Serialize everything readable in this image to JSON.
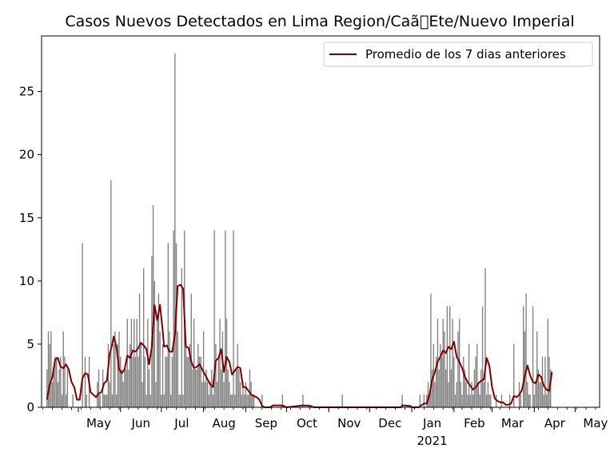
{
  "chart_data": {
    "type": "bar",
    "title": "Casos Nuevos Detectados en Lima Region/Caã\u0000Ete/Nuevo Imperial",
    "xlabel": "",
    "ylabel": "",
    "ylim": [
      0,
      29.4
    ],
    "x_start": "2020-04-04",
    "x_end": "2021-05-19",
    "y_ticks": [
      0,
      5,
      10,
      15,
      20,
      25
    ],
    "x_ticks": [
      {
        "date": "2020-05-01",
        "label": "May",
        "sub": ""
      },
      {
        "date": "2020-06-01",
        "label": "Jun",
        "sub": ""
      },
      {
        "date": "2020-07-01",
        "label": "Jul",
        "sub": ""
      },
      {
        "date": "2020-08-01",
        "label": "Aug",
        "sub": ""
      },
      {
        "date": "2020-09-01",
        "label": "Sep",
        "sub": ""
      },
      {
        "date": "2020-10-01",
        "label": "Oct",
        "sub": ""
      },
      {
        "date": "2020-11-01",
        "label": "Nov",
        "sub": ""
      },
      {
        "date": "2020-12-01",
        "label": "Dec",
        "sub": ""
      },
      {
        "date": "2021-01-01",
        "label": "Jan",
        "sub": "2021"
      },
      {
        "date": "2021-02-01",
        "label": "Feb",
        "sub": ""
      },
      {
        "date": "2021-03-01",
        "label": "Mar",
        "sub": ""
      },
      {
        "date": "2021-04-01",
        "label": "Apr",
        "sub": ""
      },
      {
        "date": "2021-05-01",
        "label": "May",
        "sub": ""
      }
    ],
    "legend": {
      "position": "top-right",
      "label": "Promedio de los 7 dias anteriores"
    },
    "colors": {
      "bars": "#808080",
      "line": "#800000"
    },
    "grid": false,
    "daily_cases": {
      "2020-04-08": 3,
      "2020-04-09": 6,
      "2020-04-10": 5,
      "2020-04-11": 6,
      "2020-04-12": 2,
      "2020-04-13": 3,
      "2020-04-14": 4,
      "2020-04-15": 4,
      "2020-04-16": 2,
      "2020-04-17": 3,
      "2020-04-18": 4,
      "2020-04-19": 1,
      "2020-04-20": 6,
      "2020-04-21": 4,
      "2020-04-22": 1,
      "2020-04-23": 3,
      "2020-04-27": 1,
      "2020-05-04": 13,
      "2020-05-06": 4,
      "2020-05-07": 1,
      "2020-05-09": 4,
      "2020-05-15": 2,
      "2020-05-16": 3,
      "2020-05-17": 1,
      "2020-05-19": 3,
      "2020-05-20": 1,
      "2020-05-21": 1,
      "2020-05-22": 1,
      "2020-05-23": 5,
      "2020-05-24": 2,
      "2020-05-25": 18,
      "2020-05-26": 1,
      "2020-05-27": 5,
      "2020-05-28": 6,
      "2020-05-29": 1,
      "2020-05-30": 5,
      "2020-05-31": 6,
      "2020-06-01": 4,
      "2020-06-02": 3,
      "2020-06-03": 2,
      "2020-06-04": 3,
      "2020-06-05": 3,
      "2020-06-06": 7,
      "2020-06-07": 3,
      "2020-06-08": 5,
      "2020-06-09": 7,
      "2020-06-10": 4,
      "2020-06-11": 7,
      "2020-06-12": 4,
      "2020-06-13": 7,
      "2020-06-14": 4,
      "2020-06-15": 9,
      "2020-06-16": 5,
      "2020-06-17": 2,
      "2020-06-18": 11,
      "2020-06-19": 4,
      "2020-06-20": 1,
      "2020-06-21": 7,
      "2020-06-22": 3,
      "2020-06-23": 1,
      "2020-06-24": 12,
      "2020-06-25": 16,
      "2020-06-26": 10,
      "2020-06-27": 2,
      "2020-06-28": 7,
      "2020-06-29": 9,
      "2020-06-30": 6,
      "2020-07-01": 1,
      "2020-07-02": 5,
      "2020-07-03": 1,
      "2020-07-04": 4,
      "2020-07-05": 4,
      "2020-07-06": 13,
      "2020-07-07": 6,
      "2020-07-08": 1,
      "2020-07-09": 4,
      "2020-07-10": 14,
      "2020-07-11": 28,
      "2020-07-12": 13,
      "2020-07-13": 6,
      "2020-07-14": 1,
      "2020-07-15": 1,
      "2020-07-16": 11,
      "2020-07-17": 1,
      "2020-07-18": 14,
      "2020-07-19": 5,
      "2020-07-20": 4,
      "2020-07-21": 4,
      "2020-07-22": 5,
      "2020-07-23": 9,
      "2020-07-24": 3,
      "2020-07-25": 7,
      "2020-07-26": 3,
      "2020-07-27": 3,
      "2020-07-28": 5,
      "2020-07-29": 4,
      "2020-07-30": 4,
      "2020-07-31": 2,
      "2020-08-01": 6,
      "2020-08-02": 2,
      "2020-08-03": 3,
      "2020-08-04": 2,
      "2020-08-05": 1,
      "2020-08-06": 2,
      "2020-08-07": 3,
      "2020-08-08": 1,
      "2020-08-09": 14,
      "2020-08-10": 5,
      "2020-08-11": 2,
      "2020-08-12": 4,
      "2020-08-13": 7,
      "2020-08-14": 3,
      "2020-08-15": 6,
      "2020-08-16": 2,
      "2020-08-17": 14,
      "2020-08-18": 7,
      "2020-08-19": 3,
      "2020-08-20": 2,
      "2020-08-21": 1,
      "2020-08-22": 1,
      "2020-08-23": 14,
      "2020-08-24": 1,
      "2020-08-25": 3,
      "2020-08-26": 5,
      "2020-08-27": 3,
      "2020-08-28": 2,
      "2020-08-29": 1,
      "2020-08-30": 2,
      "2020-08-31": 1,
      "2020-09-01": 2,
      "2020-09-02": 1,
      "2020-09-03": 1,
      "2020-09-04": 3,
      "2020-09-05": 2,
      "2020-09-06": 1,
      "2020-09-07": 1,
      "2020-09-13": 1,
      "2020-09-28": 1,
      "2020-10-13": 1,
      "2020-11-11": 1,
      "2020-12-25": 1,
      "2021-01-07": 1,
      "2021-01-10": 1,
      "2021-01-12": 1,
      "2021-01-13": 2,
      "2021-01-14": 1,
      "2021-01-15": 9,
      "2021-01-16": 3,
      "2021-01-17": 5,
      "2021-01-18": 2,
      "2021-01-19": 4,
      "2021-01-20": 7,
      "2021-01-21": 3,
      "2021-01-22": 5,
      "2021-01-23": 4,
      "2021-01-24": 7,
      "2021-01-25": 6,
      "2021-01-26": 3,
      "2021-01-27": 8,
      "2021-01-28": 2,
      "2021-01-29": 8,
      "2021-01-30": 3,
      "2021-01-31": 7,
      "2021-02-01": 4,
      "2021-02-02": 1,
      "2021-02-03": 2,
      "2021-02-04": 6,
      "2021-02-05": 7,
      "2021-02-06": 2,
      "2021-02-07": 1,
      "2021-02-08": 4,
      "2021-02-09": 3,
      "2021-02-10": 2,
      "2021-02-11": 1,
      "2021-02-12": 5,
      "2021-02-13": 1,
      "2021-02-14": 2,
      "2021-02-15": 1,
      "2021-02-16": 3,
      "2021-02-17": 4,
      "2021-02-18": 5,
      "2021-02-19": 2,
      "2021-02-20": 1,
      "2021-02-21": 3,
      "2021-02-22": 8,
      "2021-02-23": 2,
      "2021-02-24": 11,
      "2021-02-25": 1,
      "2021-02-26": 2,
      "2021-02-27": 1,
      "2021-02-28": 1,
      "2021-03-04": 1,
      "2021-03-08": 1,
      "2021-03-14": 1,
      "2021-03-17": 5,
      "2021-03-21": 2,
      "2021-03-22": 1,
      "2021-03-24": 8,
      "2021-03-25": 6,
      "2021-03-26": 9,
      "2021-03-27": 2,
      "2021-03-28": 1,
      "2021-03-29": 1,
      "2021-03-31": 8,
      "2021-04-01": 1,
      "2021-04-02": 2,
      "2021-04-03": 6,
      "2021-04-04": 3,
      "2021-04-05": 2,
      "2021-04-06": 2,
      "2021-04-07": 4,
      "2021-04-08": 1,
      "2021-04-09": 4,
      "2021-04-10": 1,
      "2021-04-11": 7,
      "2021-04-12": 4,
      "2021-04-13": 3
    },
    "rolling_avg_points": [
      [
        "2020-04-08",
        0.6
      ],
      [
        "2020-04-10",
        1.8
      ],
      [
        "2020-04-12",
        2.4
      ],
      [
        "2020-04-14",
        3.8
      ],
      [
        "2020-04-16",
        3.9
      ],
      [
        "2020-04-18",
        3.2
      ],
      [
        "2020-04-20",
        3.1
      ],
      [
        "2020-04-22",
        3.4
      ],
      [
        "2020-04-24",
        3.0
      ],
      [
        "2020-04-26",
        2.0
      ],
      [
        "2020-04-28",
        1.6
      ],
      [
        "2020-04-30",
        0.6
      ],
      [
        "2020-05-02",
        0.6
      ],
      [
        "2020-05-04",
        2.3
      ],
      [
        "2020-05-06",
        2.7
      ],
      [
        "2020-05-08",
        2.6
      ],
      [
        "2020-05-10",
        1.2
      ],
      [
        "2020-05-12",
        1.0
      ],
      [
        "2020-05-14",
        0.8
      ],
      [
        "2020-05-16",
        1.1
      ],
      [
        "2020-05-18",
        1.2
      ],
      [
        "2020-05-20",
        1.9
      ],
      [
        "2020-05-22",
        2.1
      ],
      [
        "2020-05-24",
        4.2
      ],
      [
        "2020-05-26",
        5.0
      ],
      [
        "2020-05-27",
        5.6
      ],
      [
        "2020-05-29",
        4.8
      ],
      [
        "2020-05-31",
        3.0
      ],
      [
        "2020-06-02",
        2.7
      ],
      [
        "2020-06-04",
        3.0
      ],
      [
        "2020-06-06",
        4.1
      ],
      [
        "2020-06-08",
        3.9
      ],
      [
        "2020-06-10",
        4.5
      ],
      [
        "2020-06-12",
        4.4
      ],
      [
        "2020-06-14",
        4.7
      ],
      [
        "2020-06-16",
        5.1
      ],
      [
        "2020-06-18",
        4.9
      ],
      [
        "2020-06-20",
        4.6
      ],
      [
        "2020-06-22",
        3.4
      ],
      [
        "2020-06-24",
        4.8
      ],
      [
        "2020-06-26",
        8.1
      ],
      [
        "2020-06-28",
        6.9
      ],
      [
        "2020-06-30",
        8.1
      ],
      [
        "2020-07-02",
        6.1
      ],
      [
        "2020-07-03",
        4.8
      ],
      [
        "2020-07-05",
        4.9
      ],
      [
        "2020-07-07",
        4.4
      ],
      [
        "2020-07-09",
        4.4
      ],
      [
        "2020-07-11",
        5.7
      ],
      [
        "2020-07-13",
        9.6
      ],
      [
        "2020-07-15",
        9.7
      ],
      [
        "2020-07-17",
        9.4
      ],
      [
        "2020-07-19",
        4.8
      ],
      [
        "2020-07-21",
        4.7
      ],
      [
        "2020-07-23",
        3.6
      ],
      [
        "2020-07-25",
        3.1
      ],
      [
        "2020-07-27",
        3.2
      ],
      [
        "2020-07-29",
        3.4
      ],
      [
        "2020-07-31",
        3.0
      ],
      [
        "2020-08-02",
        2.6
      ],
      [
        "2020-08-04",
        2.2
      ],
      [
        "2020-08-06",
        1.8
      ],
      [
        "2020-08-08",
        1.6
      ],
      [
        "2020-08-10",
        3.7
      ],
      [
        "2020-08-12",
        3.9
      ],
      [
        "2020-08-14",
        4.6
      ],
      [
        "2020-08-16",
        2.8
      ],
      [
        "2020-08-18",
        4.0
      ],
      [
        "2020-08-20",
        3.6
      ],
      [
        "2020-08-22",
        2.6
      ],
      [
        "2020-08-24",
        2.9
      ],
      [
        "2020-08-26",
        3.2
      ],
      [
        "2020-08-28",
        3.1
      ],
      [
        "2020-08-30",
        1.6
      ],
      [
        "2020-09-01",
        1.6
      ],
      [
        "2020-09-03",
        1.3
      ],
      [
        "2020-09-05",
        1.0
      ],
      [
        "2020-09-07",
        0.9
      ],
      [
        "2020-09-09",
        0.8
      ],
      [
        "2020-09-11",
        0.6
      ],
      [
        "2020-09-13",
        0.1
      ],
      [
        "2020-09-15",
        0.0
      ],
      [
        "2020-09-19",
        0.0
      ],
      [
        "2020-09-21",
        0.15
      ],
      [
        "2020-09-27",
        0.15
      ],
      [
        "2020-09-29",
        0.1
      ],
      [
        "2020-10-01",
        0.0
      ],
      [
        "2020-10-13",
        0.15
      ],
      [
        "2020-10-19",
        0.1
      ],
      [
        "2020-10-21",
        0.0
      ],
      [
        "2020-12-24",
        0.0
      ],
      [
        "2020-12-25",
        0.15
      ],
      [
        "2020-12-31",
        0.1
      ],
      [
        "2021-01-01",
        0.0
      ],
      [
        "2021-01-06",
        0.0
      ],
      [
        "2021-01-08",
        0.15
      ],
      [
        "2021-01-10",
        0.3
      ],
      [
        "2021-01-12",
        0.3
      ],
      [
        "2021-01-14",
        1.0
      ],
      [
        "2021-01-16",
        2.2
      ],
      [
        "2021-01-18",
        2.8
      ],
      [
        "2021-01-20",
        3.6
      ],
      [
        "2021-01-22",
        4.0
      ],
      [
        "2021-01-24",
        4.5
      ],
      [
        "2021-01-26",
        4.3
      ],
      [
        "2021-01-28",
        4.8
      ],
      [
        "2021-01-30",
        4.6
      ],
      [
        "2021-02-01",
        5.2
      ],
      [
        "2021-02-03",
        4.0
      ],
      [
        "2021-02-05",
        3.6
      ],
      [
        "2021-02-07",
        3.1
      ],
      [
        "2021-02-09",
        2.4
      ],
      [
        "2021-02-11",
        2.0
      ],
      [
        "2021-02-13",
        1.7
      ],
      [
        "2021-02-15",
        1.4
      ],
      [
        "2021-02-17",
        1.6
      ],
      [
        "2021-02-19",
        1.9
      ],
      [
        "2021-02-21",
        2.1
      ],
      [
        "2021-02-23",
        2.2
      ],
      [
        "2021-02-25",
        3.9
      ],
      [
        "2021-02-27",
        3.3
      ],
      [
        "2021-03-01",
        1.6
      ],
      [
        "2021-03-03",
        0.7
      ],
      [
        "2021-03-05",
        0.5
      ],
      [
        "2021-03-07",
        0.4
      ],
      [
        "2021-03-09",
        0.4
      ],
      [
        "2021-03-11",
        0.2
      ],
      [
        "2021-03-13",
        0.2
      ],
      [
        "2021-03-15",
        0.3
      ],
      [
        "2021-03-17",
        0.9
      ],
      [
        "2021-03-19",
        0.8
      ],
      [
        "2021-03-21",
        1.0
      ],
      [
        "2021-03-23",
        1.4
      ],
      [
        "2021-03-25",
        2.5
      ],
      [
        "2021-03-27",
        3.3
      ],
      [
        "2021-03-29",
        2.5
      ],
      [
        "2021-03-31",
        2.0
      ],
      [
        "2021-04-02",
        1.9
      ],
      [
        "2021-04-04",
        2.6
      ],
      [
        "2021-04-06",
        2.4
      ],
      [
        "2021-04-08",
        1.7
      ],
      [
        "2021-04-10",
        1.4
      ],
      [
        "2021-04-12",
        1.3
      ],
      [
        "2021-04-14",
        2.8
      ]
    ]
  }
}
